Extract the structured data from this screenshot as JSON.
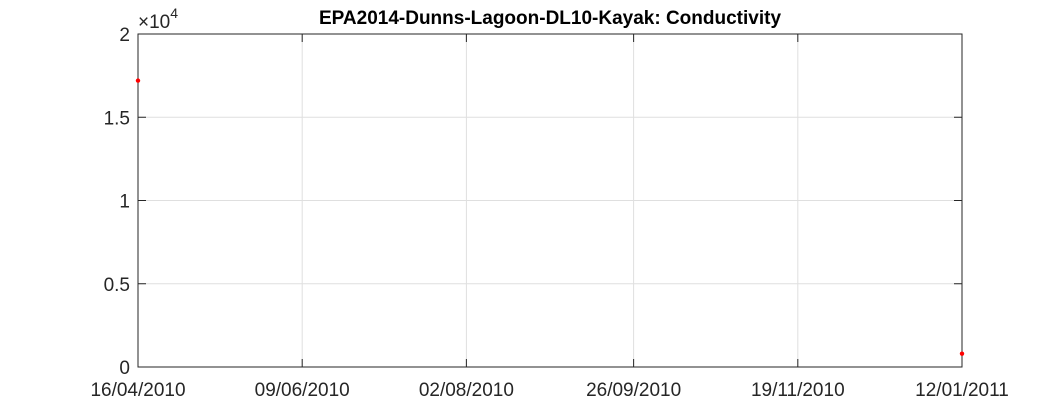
{
  "chart_data": {
    "type": "scatter",
    "title": "EPA2014-Dunns-Lagoon-DL10-Kayak: Conductivity",
    "xlabel": "",
    "ylabel": "",
    "x_tick_labels": [
      "16/04/2010",
      "09/06/2010",
      "02/08/2010",
      "26/09/2010",
      "19/11/2010",
      "12/01/2011"
    ],
    "xlim_days": [
      0,
      271
    ],
    "y_tick_labels": [
      "0",
      "0.5",
      "1",
      "1.5",
      "2"
    ],
    "y_multiplier_base": "×10",
    "y_multiplier_exp": "4",
    "ylim": [
      0,
      20000
    ],
    "grid": true,
    "series": [
      {
        "color": "#ff0000",
        "points": [
          {
            "x": "16/04/2010",
            "y": 17200
          },
          {
            "x": "12/01/2011",
            "y": 800
          }
        ]
      }
    ]
  }
}
